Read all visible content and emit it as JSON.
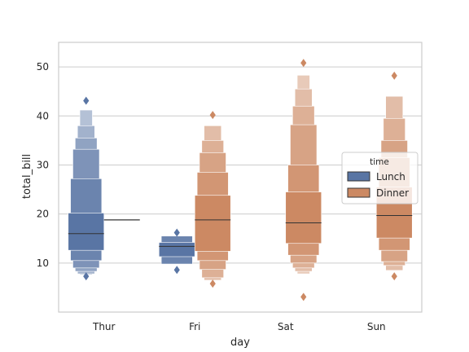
{
  "chart_data": {
    "type": "boxen",
    "xlabel": "day",
    "ylabel": "total_bill",
    "categories": [
      "Thur",
      "Fri",
      "Sat",
      "Sun"
    ],
    "ylim": [
      0,
      55
    ],
    "yticks": [
      10,
      20,
      30,
      40,
      50
    ],
    "grid": "horizontal",
    "legend": {
      "title": "time",
      "placement": "right",
      "entries": [
        "Lunch",
        "Dinner"
      ]
    },
    "colors": {
      "Lunch": "#5975a4",
      "Dinner": "#cc8963"
    },
    "series": [
      {
        "name": "Lunch",
        "groups": [
          {
            "category": "Thur",
            "median": 16.0,
            "boxes": [
              [
                12.6,
                20.2
              ],
              [
                10.5,
                27.2
              ],
              [
                9.0,
                33.2
              ],
              [
                8.3,
                35.5
              ],
              [
                7.8,
                38.0
              ],
              [
                7.6,
                41.2
              ]
            ],
            "outliers": [
              7.3,
              43.1
            ]
          },
          {
            "category": "Fri",
            "median": 13.4,
            "boxes": [
              [
                11.3,
                14.2
              ],
              [
                9.8,
                15.5
              ]
            ],
            "outliers": [
              8.6,
              16.2
            ]
          }
        ]
      },
      {
        "name": "Dinner",
        "groups": [
          {
            "category": "Thur",
            "median": 18.8,
            "boxes": [],
            "outliers": []
          },
          {
            "category": "Fri",
            "median": 18.8,
            "boxes": [
              [
                12.4,
                23.8
              ],
              [
                10.5,
                28.5
              ],
              [
                8.7,
                32.5
              ],
              [
                7.0,
                35.0
              ],
              [
                6.5,
                38.0
              ]
            ],
            "outliers": [
              5.8,
              40.2
            ]
          },
          {
            "category": "Sat",
            "median": 18.2,
            "boxes": [
              [
                14.0,
                24.5
              ],
              [
                11.6,
                30.0
              ],
              [
                10.0,
                38.2
              ],
              [
                9.0,
                42.0
              ],
              [
                8.3,
                45.5
              ],
              [
                7.8,
                48.3
              ]
            ],
            "outliers": [
              3.1,
              50.8
            ]
          },
          {
            "category": "Sun",
            "median": 19.7,
            "boxes": [
              [
                15.1,
                25.5
              ],
              [
                12.6,
                31.5
              ],
              [
                10.3,
                35.0
              ],
              [
                9.5,
                39.5
              ],
              [
                8.5,
                44.0
              ]
            ],
            "outliers": [
              7.3,
              48.2
            ]
          }
        ]
      }
    ]
  }
}
